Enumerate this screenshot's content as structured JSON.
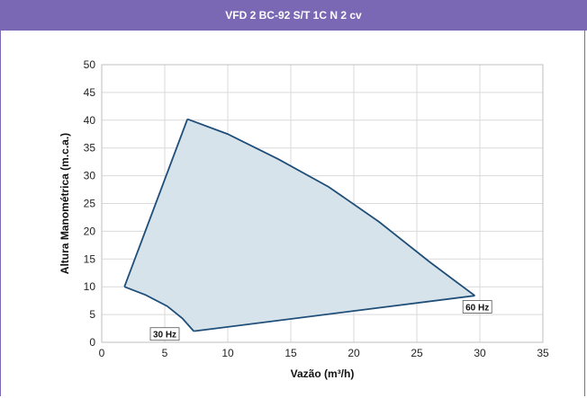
{
  "header": {
    "title": "VFD 2 BC-92 S/T 1C N 2 cv"
  },
  "colors": {
    "header_bg": "#7b68b5",
    "fill": "#d6e3ea",
    "stroke": "#1f4e79",
    "grid": "#d9d9d9"
  },
  "chart_data": {
    "type": "area",
    "title": "VFD 2 BC-92 S/T 1C N 2 cv",
    "xlabel": "Vazão (m³/h)",
    "ylabel": "Altura Manométrica (m.c.a.)",
    "xlim": [
      0,
      35
    ],
    "ylim": [
      0,
      50
    ],
    "xticks": [
      0,
      5,
      10,
      15,
      20,
      25,
      30,
      35
    ],
    "yticks": [
      0,
      5,
      10,
      15,
      20,
      25,
      30,
      35,
      40,
      45,
      50
    ],
    "grid": true,
    "curves": {
      "curve_30hz": {
        "label": "30 Hz",
        "x": [
          1.8,
          3.5,
          5.2,
          6.4,
          7.3
        ],
        "y": [
          10,
          8.5,
          6.5,
          4.3,
          2
        ]
      },
      "curve_60hz": {
        "label": "60 Hz",
        "x": [
          6.8,
          10,
          14,
          18,
          22,
          26,
          29.6
        ],
        "y": [
          40.2,
          37.5,
          33,
          28,
          21.7,
          14.5,
          8.4
        ]
      },
      "lower_boundary": {
        "x": [
          7.3,
          29.6
        ],
        "y": [
          2,
          8.4
        ]
      },
      "upper_boundary": {
        "x": [
          1.8,
          6.8
        ],
        "y": [
          10,
          40.2
        ]
      }
    },
    "annotations": [
      {
        "text": "30 Hz",
        "x": 5.0,
        "y": 1.5
      },
      {
        "text": "60 Hz",
        "x": 29.8,
        "y": 6.4
      }
    ]
  }
}
